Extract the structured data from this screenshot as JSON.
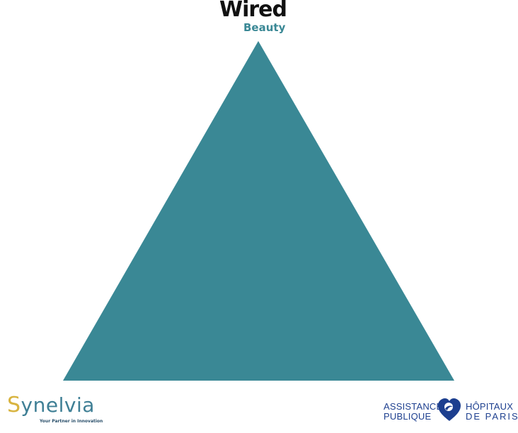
{
  "title": {
    "main": "Wired",
    "sub": "Beauty"
  },
  "triangle": {
    "color": "#3a8895"
  },
  "logos": {
    "left": {
      "brand_first": "S",
      "brand_rest": "ynelvia",
      "tagline": "Your Partner in Innovation",
      "brand_color": "#3f7f95",
      "accent_color": "#d8b440"
    },
    "right": {
      "left_line1": "ASSISTANCE",
      "left_line2": "PUBLIQUE",
      "right_line1": "HÔPITAUX",
      "right_line2": "DE PARIS",
      "color": "#1d3f8f"
    }
  }
}
